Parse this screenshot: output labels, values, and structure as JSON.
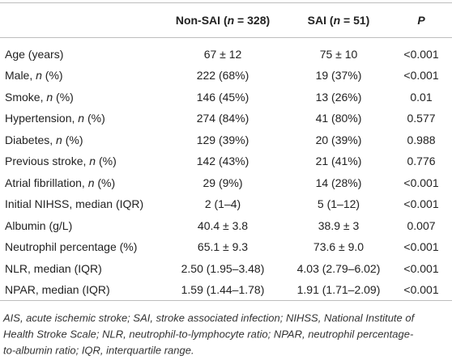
{
  "table": {
    "header": [
      [
        {
          "t": "Non-SAI ("
        },
        {
          "t": "n",
          "i": true
        },
        {
          "t": " = 328)"
        }
      ],
      [
        {
          "t": "SAI ("
        },
        {
          "t": "n",
          "i": true
        },
        {
          "t": " = 51)"
        }
      ],
      [
        {
          "t": "P",
          "i": true
        }
      ]
    ],
    "rows": [
      {
        "label": [
          {
            "t": "Age (years)"
          }
        ],
        "cells": [
          "67 ± 12",
          "75 ± 10",
          "<0.001"
        ]
      },
      {
        "label": [
          {
            "t": "Male, "
          },
          {
            "t": "n",
            "i": true
          },
          {
            "t": " (%)"
          }
        ],
        "cells": [
          "222 (68%)",
          "19 (37%)",
          "<0.001"
        ]
      },
      {
        "label": [
          {
            "t": "Smoke, "
          },
          {
            "t": "n",
            "i": true
          },
          {
            "t": " (%)"
          }
        ],
        "cells": [
          "146 (45%)",
          "13 (26%)",
          "0.01"
        ]
      },
      {
        "label": [
          {
            "t": "Hypertension, "
          },
          {
            "t": "n",
            "i": true
          },
          {
            "t": " (%)"
          }
        ],
        "cells": [
          "274 (84%)",
          "41 (80%)",
          "0.577"
        ]
      },
      {
        "label": [
          {
            "t": "Diabetes, "
          },
          {
            "t": "n",
            "i": true
          },
          {
            "t": " (%)"
          }
        ],
        "cells": [
          "129 (39%)",
          "20 (39%)",
          "0.988"
        ]
      },
      {
        "label": [
          {
            "t": "Previous stroke, "
          },
          {
            "t": "n",
            "i": true
          },
          {
            "t": " (%)"
          }
        ],
        "cells": [
          "142 (43%)",
          "21 (41%)",
          "0.776"
        ]
      },
      {
        "label": [
          {
            "t": "Atrial fibrillation, "
          },
          {
            "t": "n",
            "i": true
          },
          {
            "t": " (%)"
          }
        ],
        "cells": [
          "29 (9%)",
          "14 (28%)",
          "<0.001"
        ]
      },
      {
        "label": [
          {
            "t": "Initial NIHSS, median (IQR)"
          }
        ],
        "cells": [
          "2 (1–4)",
          "5 (1–12)",
          "<0.001"
        ]
      },
      {
        "label": [
          {
            "t": "Albumin (g/L)"
          }
        ],
        "cells": [
          "40.4 ± 3.8",
          "38.9 ± 3",
          "0.007"
        ]
      },
      {
        "label": [
          {
            "t": "Neutrophil percentage (%)"
          }
        ],
        "cells": [
          "65.1 ± 9.3",
          "73.6 ± 9.0",
          "<0.001"
        ]
      },
      {
        "label": [
          {
            "t": "NLR, median (IQR)"
          }
        ],
        "cells": [
          "2.50 (1.95–3.48)",
          "4.03 (2.79–6.02)",
          "<0.001"
        ]
      },
      {
        "label": [
          {
            "t": "NPAR, median (IQR)"
          }
        ],
        "cells": [
          "1.59 (1.44–1.78)",
          "1.91 (1.71–2.09)",
          "<0.001"
        ]
      }
    ],
    "footnote": [
      "AIS, acute ischemic stroke; SAI, stroke associated infection; NIHSS, National Institute of",
      "Health Stroke Scale; NLR, neutrophil-to-lymphocyte ratio; NPAR, neutrophil percentage-",
      "to-albumin ratio; IQR, interquartile range."
    ]
  }
}
